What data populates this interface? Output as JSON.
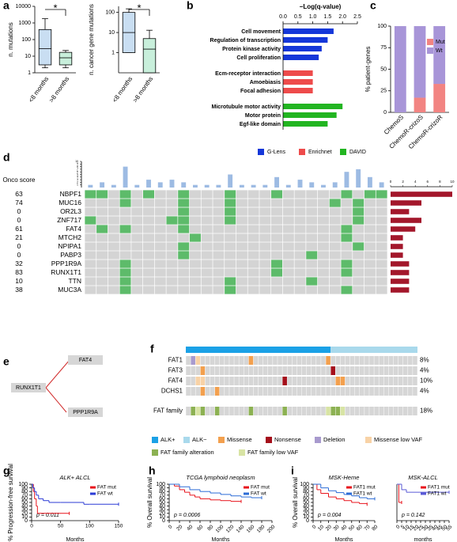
{
  "chart_data": [
    {
      "type": "box",
      "panel": "a",
      "ylabel": "n. mutations",
      "log_scale": true,
      "categories": [
        "<8 months",
        ">8 months"
      ],
      "colors": [
        "#c9def2",
        "#c8efdb"
      ],
      "boxes": [
        {
          "whisker_low": 2,
          "q1": 3,
          "median": 28,
          "q3": 400,
          "whisker_high": 1800
        },
        {
          "whisker_low": 2,
          "q1": 3,
          "median": 8,
          "q3": 17,
          "whisker_high": 22
        }
      ],
      "ylim": [
        1,
        10000
      ],
      "yticks": [
        1,
        10,
        100,
        1000,
        10000
      ],
      "annotation": "*"
    },
    {
      "type": "box",
      "ylabel": "n. cancer gene mutations",
      "log_scale": true,
      "categories": [
        "<8 months",
        ">8 months"
      ],
      "colors": [
        "#c9def2",
        "#c8efdb"
      ],
      "boxes": [
        {
          "whisker_low": 1,
          "q1": 1,
          "median": 10,
          "q3": 100,
          "whisker_high": 150
        },
        {
          "whisker_low": 0.1,
          "q1": 0.1,
          "median": 1.5,
          "q3": 5,
          "whisker_high": 13
        }
      ],
      "ylim": [
        0.1,
        200
      ],
      "yticks": [
        1,
        10,
        100
      ],
      "annotation": "*"
    },
    {
      "type": "hbar",
      "panel": "b",
      "title": "−Log(q-value)",
      "xlim": [
        0,
        2.5
      ],
      "xticks": [
        {
          "value": 0,
          "label": "0.0"
        },
        0.5,
        {
          "value": 1,
          "label": "1.0"
        },
        1.5,
        {
          "value": 2,
          "label": "2.0"
        },
        2.5
      ],
      "series": [
        {
          "name": "G-Lens",
          "color": "#1537d9",
          "categories": [
            "Cell movement",
            "Regulation of transcription",
            "Protein kinase activity",
            "Cell proliferation"
          ],
          "values": [
            1.7,
            1.5,
            1.3,
            1.2
          ]
        },
        {
          "name": "Enrichnet",
          "color": "#ee4b4b",
          "categories": [
            "Ecm-receptor interaction",
            "Amoebiasis",
            "Focal adhesion"
          ],
          "values": [
            1.0,
            1.0,
            1.0
          ]
        },
        {
          "name": "DAVID",
          "color": "#22b521",
          "categories": [
            "Microtubule motor activity",
            "Motor protein",
            "Egf-like domain"
          ],
          "values": [
            2.0,
            1.8,
            1.5
          ]
        }
      ]
    },
    {
      "type": "stacked_bar",
      "panel": "c",
      "ylabel": "% patient-genes",
      "categories": [
        "ChemoS",
        "ChemoR-crizoS",
        "ChemoR-crizoR"
      ],
      "ylim": [
        0,
        100
      ],
      "yticks": [
        0,
        25,
        50,
        75,
        100
      ],
      "legend": "upper right",
      "series": [
        {
          "name": "Mut",
          "color": "#f28482",
          "values": [
            0,
            17,
            33
          ]
        },
        {
          "name": "Wt",
          "color": "#a895d8",
          "values": [
            100,
            83,
            67
          ]
        }
      ]
    },
    {
      "type": "oncoprint",
      "panel": "d",
      "score_title": "Onco score",
      "genes": [
        "NBPF1",
        "MUC16",
        "OR2L3",
        "ZNF717",
        "FAT4",
        "MTCH2",
        "NPIPA1",
        "PABP3",
        "PPP1R9A",
        "RUNX1T1",
        "TTN",
        "MUC3A"
      ],
      "scores": [
        63,
        74,
        0,
        0,
        61,
        21,
        0,
        0,
        32,
        83,
        10,
        38
      ],
      "mutations": [
        [
          0,
          1,
          3,
          5,
          8,
          12,
          16,
          22,
          24,
          25
        ],
        [
          3,
          8,
          12,
          21,
          23
        ],
        [
          8,
          12,
          23
        ],
        [
          0,
          7,
          8,
          12,
          23
        ],
        [
          1,
          3,
          8,
          22
        ],
        [
          9,
          22
        ],
        [
          8,
          23
        ],
        [
          8,
          19
        ],
        [
          3,
          16,
          22
        ],
        [
          3,
          16,
          22
        ],
        [
          3,
          12,
          19
        ],
        [
          3,
          12,
          22
        ]
      ],
      "sample_counts": [
        1,
        2,
        1,
        8,
        1,
        3,
        2,
        3,
        2,
        1,
        1,
        1,
        5,
        1,
        1,
        1,
        4,
        1,
        3,
        2,
        1,
        2,
        6,
        7,
        4,
        2
      ],
      "ylim": [
        0,
        10
      ],
      "yticks": [
        1,
        2,
        3,
        4,
        5,
        6,
        7,
        8,
        9,
        10
      ],
      "gene_counts": [
        10,
        5,
        3,
        5,
        4,
        2,
        2,
        2,
        3,
        3,
        3,
        3
      ],
      "xlim": [
        0,
        10
      ],
      "xticks": [
        0,
        2,
        4,
        6,
        8,
        10
      ],
      "cell_color": "#5dbb6a",
      "sample_bar_color": "#9dbbe3",
      "gene_bar_color": "#a3172b"
    },
    {
      "type": "network",
      "panel": "e",
      "nodes": [
        "RUNX1T1",
        "FAT4",
        "PPP1R9A"
      ]
    },
    {
      "type": "alteration_grid",
      "panel": "f",
      "groups": [
        {
          "name": "ALK+",
          "color": "#1ba1e6",
          "count": 30
        },
        {
          "name": "ALK−",
          "color": "#a9d9ec",
          "count": 18
        }
      ],
      "kinds": [
        {
          "name": "Missense",
          "color": "#f3a04e"
        },
        {
          "name": "Nonsense",
          "color": "#a50f1b"
        },
        {
          "name": "Deletion",
          "color": "#a89ace"
        },
        {
          "name": "Missense low VAF",
          "color": "#f8d2a6"
        },
        {
          "name": "FAT family alteration",
          "color": "#8cb152"
        },
        {
          "name": "FAT family low VAF",
          "color": "#d8e4a4"
        }
      ],
      "rows": [
        {
          "gene": "FAT1",
          "value": 8,
          "value_label": "8%",
          "cells": [
            {
              "col": 1,
              "kind": 2
            },
            {
              "col": 2,
              "kind": 3
            },
            {
              "col": 13,
              "kind": 0
            },
            {
              "col": 29,
              "kind": 0
            }
          ]
        },
        {
          "gene": "FAT3",
          "value": 4,
          "value_label": "4%",
          "cells": [
            {
              "col": 3,
              "kind": 0
            },
            {
              "col": 30,
              "kind": 1
            }
          ]
        },
        {
          "gene": "FAT4",
          "value": 10,
          "value_label": "10%",
          "cells": [
            {
              "col": 2,
              "kind": 3
            },
            {
              "col": 3,
              "kind": 3
            },
            {
              "col": 20,
              "kind": 1
            },
            {
              "col": 31,
              "kind": 0
            },
            {
              "col": 32,
              "kind": 0
            }
          ]
        },
        {
          "gene": "DCHS1",
          "value": 4,
          "value_label": "4%",
          "cells": [
            {
              "col": 3,
              "kind": 0
            },
            {
              "col": 6,
              "kind": 0
            }
          ]
        },
        {
          "gene": "FAT family",
          "value": 18,
          "value_label": "18%",
          "cells": [
            {
              "col": 1,
              "kind": 4
            },
            {
              "col": 2,
              "kind": 5
            },
            {
              "col": 3,
              "kind": 4
            },
            {
              "col": 6,
              "kind": 4
            },
            {
              "col": 13,
              "kind": 4
            },
            {
              "col": 20,
              "kind": 4
            },
            {
              "col": 29,
              "kind": 5
            },
            {
              "col": 30,
              "kind": 4
            },
            {
              "col": 31,
              "kind": 4
            },
            {
              "col": 32,
              "kind": 5
            }
          ]
        }
      ]
    },
    {
      "type": "survival",
      "panel": "g",
      "title": "ALK+ ALCL",
      "ylabel": "% Progression-free survival",
      "xlabel": "Months",
      "annotation": "p = 0.011",
      "xlim": [
        0,
        150
      ],
      "xticks": [
        0,
        50,
        100,
        150
      ],
      "ylim": [
        0,
        100
      ],
      "yticks": [
        0,
        10,
        20,
        30,
        40,
        50,
        60,
        70,
        80,
        90,
        100
      ],
      "legend": "upper right",
      "series": [
        {
          "name": "FAT mut",
          "color": "#e8141c",
          "x": [
            0,
            3,
            5,
            8,
            10,
            65
          ],
          "values": [
            100,
            80,
            60,
            40,
            20,
            20
          ]
        },
        {
          "name": "FAT wt",
          "color": "#2b3bd6",
          "x": [
            0,
            2,
            5,
            8,
            12,
            20,
            30,
            50,
            90,
            100,
            150
          ],
          "values": [
            100,
            90,
            80,
            70,
            60,
            55,
            50,
            50,
            45,
            45,
            45
          ]
        }
      ]
    },
    {
      "type": "survival",
      "panel": "h",
      "title": "TCGA lymphoid neoplasm",
      "ylabel": "% Overall survival",
      "xlabel": "Months",
      "annotation": "p = 0.0006",
      "xlim": [
        0,
        200
      ],
      "xticks": [
        0,
        20,
        40,
        60,
        80,
        100,
        120,
        140,
        160,
        180,
        200
      ],
      "ylim": [
        0,
        100
      ],
      "yticks": [
        0,
        10,
        20,
        30,
        40,
        50,
        60,
        70,
        80,
        90,
        100
      ],
      "legend": "upper right",
      "series": [
        {
          "name": "FAT mut",
          "color": "#e8141c",
          "x": [
            0,
            10,
            20,
            30,
            40,
            50,
            60,
            80,
            100,
            120,
            140
          ],
          "values": [
            100,
            95,
            85,
            78,
            70,
            65,
            60,
            57,
            55,
            53,
            53
          ]
        },
        {
          "name": "FAT wt",
          "color": "#2b6bd6",
          "x": [
            0,
            20,
            40,
            60,
            80,
            100,
            120,
            140,
            160,
            180
          ],
          "values": [
            100,
            93,
            85,
            80,
            76,
            72,
            68,
            65,
            63,
            63
          ]
        }
      ]
    },
    {
      "type": "survival",
      "panel": "i",
      "title": "MSK-Heme",
      "ylabel": "% Overall survival",
      "xlabel": "Months",
      "annotation": "p = 0.004",
      "xlim": [
        0,
        80
      ],
      "xticks": [
        0,
        10,
        20,
        30,
        40,
        50,
        60,
        70,
        80
      ],
      "ylim": [
        0,
        100
      ],
      "yticks": [
        0,
        10,
        20,
        30,
        40,
        50,
        60,
        70,
        80,
        90,
        100
      ],
      "legend": "upper right",
      "series": [
        {
          "name": "FAT1 mut",
          "color": "#e8141c",
          "x": [
            0,
            5,
            10,
            20,
            30,
            40,
            50,
            60,
            70
          ],
          "values": [
            100,
            85,
            75,
            65,
            60,
            55,
            50,
            47,
            45
          ]
        },
        {
          "name": "FAT1 wt",
          "color": "#2b6bd6",
          "x": [
            0,
            10,
            20,
            30,
            40,
            50,
            60,
            70,
            80
          ],
          "values": [
            100,
            90,
            82,
            77,
            72,
            68,
            63,
            60,
            60
          ]
        }
      ]
    },
    {
      "type": "survival",
      "title": "MSK-ALCL",
      "xlabel": "months",
      "annotation": "p = 0.142",
      "xlim": [
        0,
        55
      ],
      "xticks": [
        0,
        5,
        10,
        15,
        20,
        25,
        30,
        35,
        40,
        45,
        50,
        55
      ],
      "ylim": [
        0,
        100
      ],
      "legend": "upper right",
      "series": [
        {
          "name": "FAT1 mut",
          "color": "#e8141c",
          "x": [
            0,
            2,
            5
          ],
          "values": [
            100,
            50,
            50
          ]
        },
        {
          "name": "FAT1 wt",
          "color": "#5a5ad6",
          "x": [
            0,
            5,
            10,
            55
          ],
          "values": [
            100,
            85,
            78,
            78
          ]
        }
      ]
    }
  ]
}
